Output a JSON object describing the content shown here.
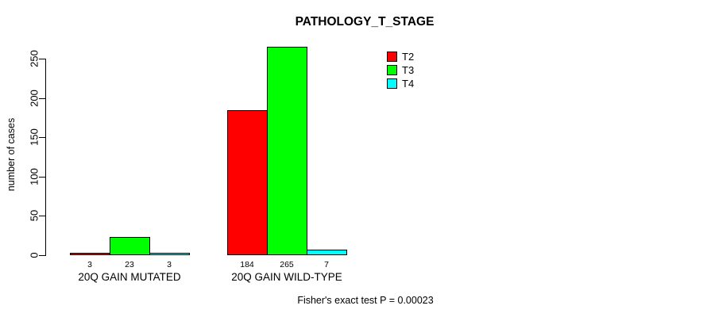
{
  "chart_data": {
    "type": "bar",
    "title": "PATHOLOGY_T_STAGE",
    "ylabel": "number of cases",
    "xlabel": "",
    "categories": [
      "20Q GAIN MUTATED",
      "20Q GAIN WILD-TYPE"
    ],
    "series": [
      {
        "name": "T2",
        "color": "#ff0000",
        "values": [
          3,
          184
        ]
      },
      {
        "name": "T3",
        "color": "#00ff00",
        "values": [
          23,
          265
        ]
      },
      {
        "name": "T4",
        "color": "#00ffff",
        "values": [
          3,
          7
        ]
      }
    ],
    "bar_value_labels": [
      [
        "3",
        "23",
        "3"
      ],
      [
        "184",
        "265",
        "7"
      ]
    ],
    "y_ticks": [
      0,
      50,
      100,
      150,
      200,
      250
    ],
    "ylim": [
      0,
      265
    ],
    "grid": false,
    "legend_position": "top-right",
    "legend_entries": [
      "T2",
      "T3",
      "T4"
    ],
    "footnote": "Fisher's exact test P = 0.00023"
  }
}
